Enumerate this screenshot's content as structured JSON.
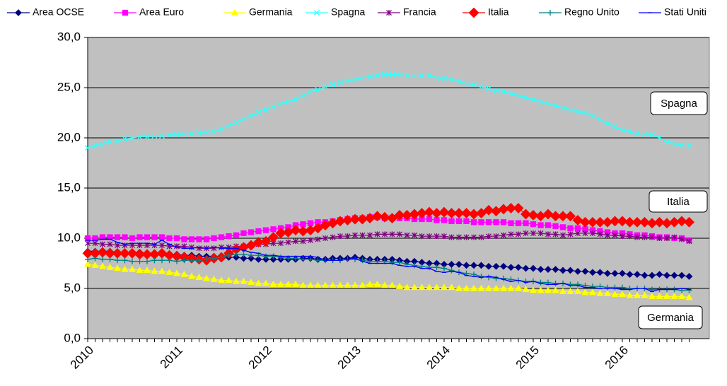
{
  "chart_data": {
    "type": "line",
    "categories": [
      "2010",
      null,
      null,
      null,
      null,
      null,
      null,
      null,
      null,
      null,
      null,
      null,
      "2011",
      null,
      null,
      null,
      null,
      null,
      null,
      null,
      null,
      null,
      null,
      null,
      "2012",
      null,
      null,
      null,
      null,
      null,
      null,
      null,
      null,
      null,
      null,
      null,
      "2013",
      null,
      null,
      null,
      null,
      null,
      null,
      null,
      null,
      null,
      null,
      null,
      "2014",
      null,
      null,
      null,
      null,
      null,
      null,
      null,
      null,
      null,
      null,
      null,
      "2015",
      null,
      null,
      null,
      null,
      null,
      null,
      null,
      null,
      null,
      null,
      null,
      "2016",
      null,
      null,
      null,
      null,
      null,
      null,
      null,
      null,
      null
    ],
    "ylim": [
      0,
      30
    ],
    "yticks": [
      {
        "value": 0,
        "label": "0,0"
      },
      {
        "value": 5,
        "label": "5,0"
      },
      {
        "value": 10,
        "label": "10,0"
      },
      {
        "value": 15,
        "label": "15,0"
      },
      {
        "value": 20,
        "label": "20,0"
      },
      {
        "value": 25,
        "label": "25,0"
      },
      {
        "value": 30,
        "label": "30,0"
      }
    ],
    "grid": true,
    "legend": "top",
    "plot_background": "#c0c0c0",
    "annotations": [
      "Spagna",
      "Italia",
      "Germania"
    ],
    "series": [
      {
        "name": "Area OCSE",
        "color": "#000080",
        "marker": "diamond",
        "values": [
          8.7,
          8.7,
          8.7,
          8.7,
          8.6,
          8.6,
          8.6,
          8.6,
          8.5,
          8.5,
          8.5,
          8.4,
          8.4,
          8.3,
          8.3,
          8.2,
          8.2,
          8.2,
          8.2,
          8.1,
          8.1,
          8.0,
          8.0,
          7.9,
          7.9,
          7.9,
          7.9,
          7.9,
          7.9,
          8.0,
          8.0,
          7.9,
          7.9,
          8.0,
          8.0,
          8.0,
          8.1,
          8.0,
          7.9,
          7.9,
          7.9,
          7.9,
          7.8,
          7.7,
          7.7,
          7.6,
          7.5,
          7.5,
          7.4,
          7.4,
          7.4,
          7.3,
          7.3,
          7.3,
          7.2,
          7.2,
          7.2,
          7.1,
          7.1,
          7.0,
          7.0,
          6.9,
          6.9,
          6.9,
          6.8,
          6.8,
          6.7,
          6.7,
          6.6,
          6.6,
          6.5,
          6.5,
          6.5,
          6.4,
          6.4,
          6.3,
          6.3,
          6.4,
          6.3,
          6.3,
          6.3,
          6.2
        ]
      },
      {
        "name": "Area Euro",
        "color": "#ff00ff",
        "marker": "square",
        "values": [
          10.0,
          10.0,
          10.1,
          10.1,
          10.1,
          10.1,
          10.0,
          10.1,
          10.1,
          10.1,
          10.1,
          10.0,
          10.0,
          9.9,
          9.9,
          9.9,
          9.9,
          10.0,
          10.1,
          10.2,
          10.3,
          10.5,
          10.6,
          10.7,
          10.8,
          10.9,
          11.0,
          11.1,
          11.3,
          11.4,
          11.5,
          11.6,
          11.6,
          11.7,
          11.8,
          11.9,
          12.0,
          12.0,
          12.1,
          12.1,
          12.0,
          12.0,
          12.0,
          12.0,
          11.9,
          11.9,
          11.9,
          11.8,
          11.8,
          11.7,
          11.7,
          11.7,
          11.6,
          11.6,
          11.6,
          11.6,
          11.6,
          11.5,
          11.5,
          11.5,
          11.4,
          11.3,
          11.3,
          11.2,
          11.1,
          11.0,
          11.0,
          10.9,
          10.8,
          10.7,
          10.6,
          10.5,
          10.5,
          10.4,
          10.3,
          10.3,
          10.2,
          10.1,
          10.1,
          10.0,
          10.0,
          9.8
        ]
      },
      {
        "name": "Germania",
        "color": "#ffff00",
        "marker": "triangle",
        "values": [
          7.4,
          7.3,
          7.2,
          7.1,
          7.0,
          6.9,
          6.9,
          6.8,
          6.8,
          6.7,
          6.7,
          6.6,
          6.5,
          6.4,
          6.2,
          6.1,
          6.0,
          5.9,
          5.8,
          5.8,
          5.7,
          5.7,
          5.6,
          5.5,
          5.5,
          5.4,
          5.4,
          5.4,
          5.4,
          5.3,
          5.3,
          5.3,
          5.3,
          5.3,
          5.3,
          5.3,
          5.3,
          5.3,
          5.4,
          5.4,
          5.3,
          5.3,
          5.2,
          5.1,
          5.1,
          5.1,
          5.1,
          5.1,
          5.1,
          5.1,
          5.0,
          5.0,
          5.0,
          5.0,
          5.0,
          5.0,
          5.0,
          5.0,
          5.0,
          4.9,
          4.8,
          4.8,
          4.8,
          4.8,
          4.7,
          4.7,
          4.7,
          4.6,
          4.6,
          4.5,
          4.5,
          4.4,
          4.4,
          4.3,
          4.3,
          4.3,
          4.2,
          4.2,
          4.2,
          4.2,
          4.2,
          4.1
        ]
      },
      {
        "name": "Spagna",
        "color": "#33ffff",
        "marker": "x",
        "values": [
          19.0,
          19.2,
          19.4,
          19.6,
          19.7,
          19.9,
          20.0,
          20.1,
          20.1,
          20.2,
          20.2,
          20.3,
          20.3,
          20.4,
          20.4,
          20.5,
          20.6,
          20.6,
          20.9,
          21.2,
          21.5,
          21.9,
          22.2,
          22.5,
          22.8,
          23.1,
          23.4,
          23.6,
          23.8,
          24.2,
          24.6,
          24.8,
          25.1,
          25.3,
          25.5,
          25.7,
          25.8,
          26.0,
          26.1,
          26.2,
          26.3,
          26.3,
          26.3,
          26.2,
          26.2,
          26.2,
          26.2,
          26.0,
          25.9,
          25.8,
          25.6,
          25.4,
          25.3,
          25.1,
          24.9,
          24.7,
          24.6,
          24.4,
          24.2,
          24.0,
          23.8,
          23.6,
          23.4,
          23.2,
          23.0,
          22.8,
          22.6,
          22.5,
          22.2,
          21.8,
          21.4,
          21.1,
          20.8,
          20.6,
          20.4,
          20.4,
          20.3,
          20.0,
          19.6,
          19.4,
          19.3,
          19.2
        ]
      },
      {
        "name": "Francia",
        "color": "#800080",
        "marker": "asterisk",
        "values": [
          9.5,
          9.5,
          9.4,
          9.4,
          9.3,
          9.3,
          9.3,
          9.3,
          9.3,
          9.3,
          9.3,
          9.2,
          9.2,
          9.2,
          9.1,
          9.0,
          9.0,
          9.0,
          9.1,
          9.1,
          9.2,
          9.2,
          9.3,
          9.4,
          9.4,
          9.5,
          9.5,
          9.6,
          9.7,
          9.7,
          9.8,
          9.9,
          10.0,
          10.1,
          10.2,
          10.2,
          10.3,
          10.3,
          10.3,
          10.4,
          10.4,
          10.4,
          10.4,
          10.3,
          10.3,
          10.2,
          10.2,
          10.2,
          10.2,
          10.1,
          10.1,
          10.1,
          10.1,
          10.1,
          10.2,
          10.2,
          10.3,
          10.4,
          10.4,
          10.5,
          10.5,
          10.5,
          10.4,
          10.4,
          10.3,
          10.4,
          10.5,
          10.5,
          10.5,
          10.4,
          10.3,
          10.3,
          10.2,
          10.2,
          10.1,
          10.1,
          10.1,
          10.0,
          10.0,
          10.1,
          9.9,
          9.7
        ]
      },
      {
        "name": "Italia",
        "color": "#ff0000",
        "marker": "bigdiamond",
        "values": [
          8.5,
          8.5,
          8.6,
          8.5,
          8.5,
          8.5,
          8.5,
          8.4,
          8.4,
          8.4,
          8.5,
          8.3,
          8.2,
          8.1,
          8.0,
          7.9,
          7.8,
          8.0,
          8.1,
          8.5,
          8.9,
          9.1,
          9.3,
          9.6,
          9.7,
          10.1,
          10.5,
          10.6,
          10.8,
          10.7,
          10.8,
          11.0,
          11.3,
          11.5,
          11.7,
          11.8,
          11.9,
          11.9,
          12.0,
          12.2,
          12.1,
          12.0,
          12.3,
          12.3,
          12.4,
          12.5,
          12.6,
          12.5,
          12.6,
          12.5,
          12.5,
          12.5,
          12.4,
          12.5,
          12.8,
          12.7,
          12.9,
          13.0,
          13.0,
          12.4,
          12.3,
          12.2,
          12.4,
          12.2,
          12.2,
          12.2,
          11.8,
          11.6,
          11.6,
          11.6,
          11.6,
          11.7,
          11.7,
          11.6,
          11.6,
          11.6,
          11.5,
          11.6,
          11.5,
          11.6,
          11.7,
          11.6
        ]
      },
      {
        "name": "Regno Unito",
        "color": "#008080",
        "marker": "plus",
        "values": [
          7.9,
          8.0,
          7.9,
          7.9,
          7.8,
          7.8,
          7.7,
          7.7,
          7.7,
          7.8,
          7.8,
          7.8,
          7.7,
          7.8,
          7.8,
          7.8,
          7.9,
          8.0,
          8.1,
          8.3,
          8.4,
          8.4,
          8.3,
          8.3,
          8.2,
          8.2,
          8.1,
          8.0,
          8.0,
          7.9,
          7.9,
          7.8,
          7.8,
          7.8,
          7.8,
          7.9,
          7.9,
          7.8,
          7.7,
          7.7,
          7.7,
          7.6,
          7.6,
          7.4,
          7.3,
          7.2,
          7.1,
          7.1,
          7.0,
          6.8,
          6.6,
          6.5,
          6.4,
          6.2,
          6.1,
          6.0,
          6.0,
          5.9,
          5.8,
          5.7,
          5.7,
          5.6,
          5.6,
          5.5,
          5.5,
          5.4,
          5.4,
          5.3,
          5.2,
          5.2,
          5.1,
          5.1,
          5.1,
          5.0,
          5.0,
          5.0,
          4.9,
          4.9,
          4.9,
          4.9,
          4.8,
          4.8
        ]
      },
      {
        "name": "Stati Uniti",
        "color": "#0000ff",
        "marker": "dash",
        "values": [
          9.8,
          9.8,
          9.9,
          9.9,
          9.6,
          9.4,
          9.5,
          9.5,
          9.5,
          9.4,
          9.8,
          9.4,
          9.1,
          9.0,
          9.0,
          9.1,
          9.0,
          9.1,
          9.0,
          9.0,
          9.0,
          8.8,
          8.6,
          8.5,
          8.3,
          8.3,
          8.2,
          8.2,
          8.2,
          8.2,
          8.2,
          8.1,
          7.8,
          7.8,
          7.8,
          7.9,
          8.0,
          7.7,
          7.5,
          7.5,
          7.5,
          7.5,
          7.3,
          7.2,
          7.2,
          7.0,
          7.0,
          6.7,
          6.6,
          6.7,
          6.6,
          6.3,
          6.2,
          6.1,
          6.2,
          6.1,
          5.9,
          5.7,
          5.8,
          5.6,
          5.7,
          5.5,
          5.4,
          5.4,
          5.5,
          5.3,
          5.3,
          5.1,
          5.1,
          5.0,
          5.0,
          5.0,
          4.9,
          4.9,
          5.0,
          5.0,
          4.7,
          4.9,
          4.9,
          4.9,
          5.0,
          4.9
        ]
      }
    ]
  }
}
